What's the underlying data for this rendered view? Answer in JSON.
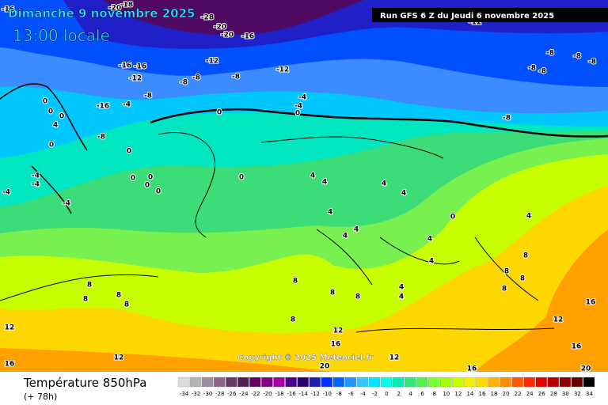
{
  "header": {
    "date": "Dimanche 9 novembre 2025",
    "time": "13:00 locale",
    "run": "Run GFS 6 Z du Jeudi 6 novembre 2025",
    "copyright": "Copyright © 2025 Meteociel.fr"
  },
  "footer": {
    "title": "Température 850hPa",
    "lead": "(+ 78h)"
  },
  "contour_labels": [
    -16,
    -20,
    -18,
    -28,
    -20,
    -20,
    -16,
    -12,
    -16,
    -16,
    -12,
    -12,
    -8,
    -8,
    -12,
    -8,
    -8,
    -8,
    -8,
    -8,
    -8,
    -8,
    -16,
    -4,
    -8,
    -4,
    -4,
    0,
    0,
    0,
    0,
    0,
    4,
    0,
    -8,
    0,
    0,
    0,
    0,
    0,
    0,
    -4,
    -4,
    -4,
    -4,
    4,
    4,
    4,
    4,
    4,
    4,
    4,
    4,
    4,
    4,
    0,
    8,
    8,
    8,
    8,
    8,
    8,
    8,
    8,
    8,
    8,
    8,
    4,
    4,
    8,
    12,
    12,
    12,
    12,
    12,
    16,
    16,
    16,
    16,
    16,
    20,
    20
  ],
  "scale": {
    "values": [
      -34,
      -32,
      -30,
      -28,
      -26,
      -24,
      -22,
      -20,
      -18,
      -16,
      -14,
      -12,
      -10,
      -8,
      -6,
      -4,
      -2,
      0,
      2,
      4,
      6,
      8,
      10,
      12,
      14,
      16,
      18,
      20,
      22,
      24,
      26,
      28,
      30,
      32,
      34
    ],
    "colors": [
      "#dcdcdc",
      "#b4b4b4",
      "#a08ca0",
      "#8c648c",
      "#643c64",
      "#501e50",
      "#640064",
      "#820082",
      "#a000a0",
      "#46008c",
      "#28006e",
      "#1e1eb4",
      "#0032ff",
      "#0064ff",
      "#1e96ff",
      "#32c8ff",
      "#00e6ff",
      "#00ffe6",
      "#00f0b4",
      "#32e678",
      "#50f050",
      "#78ff32",
      "#a0ff00",
      "#c8ff00",
      "#f0f000",
      "#ffdc00",
      "#ffb400",
      "#ff8c00",
      "#ff5a00",
      "#ff2800",
      "#e60000",
      "#b40000",
      "#8c0000",
      "#640000",
      "#000000"
    ]
  }
}
